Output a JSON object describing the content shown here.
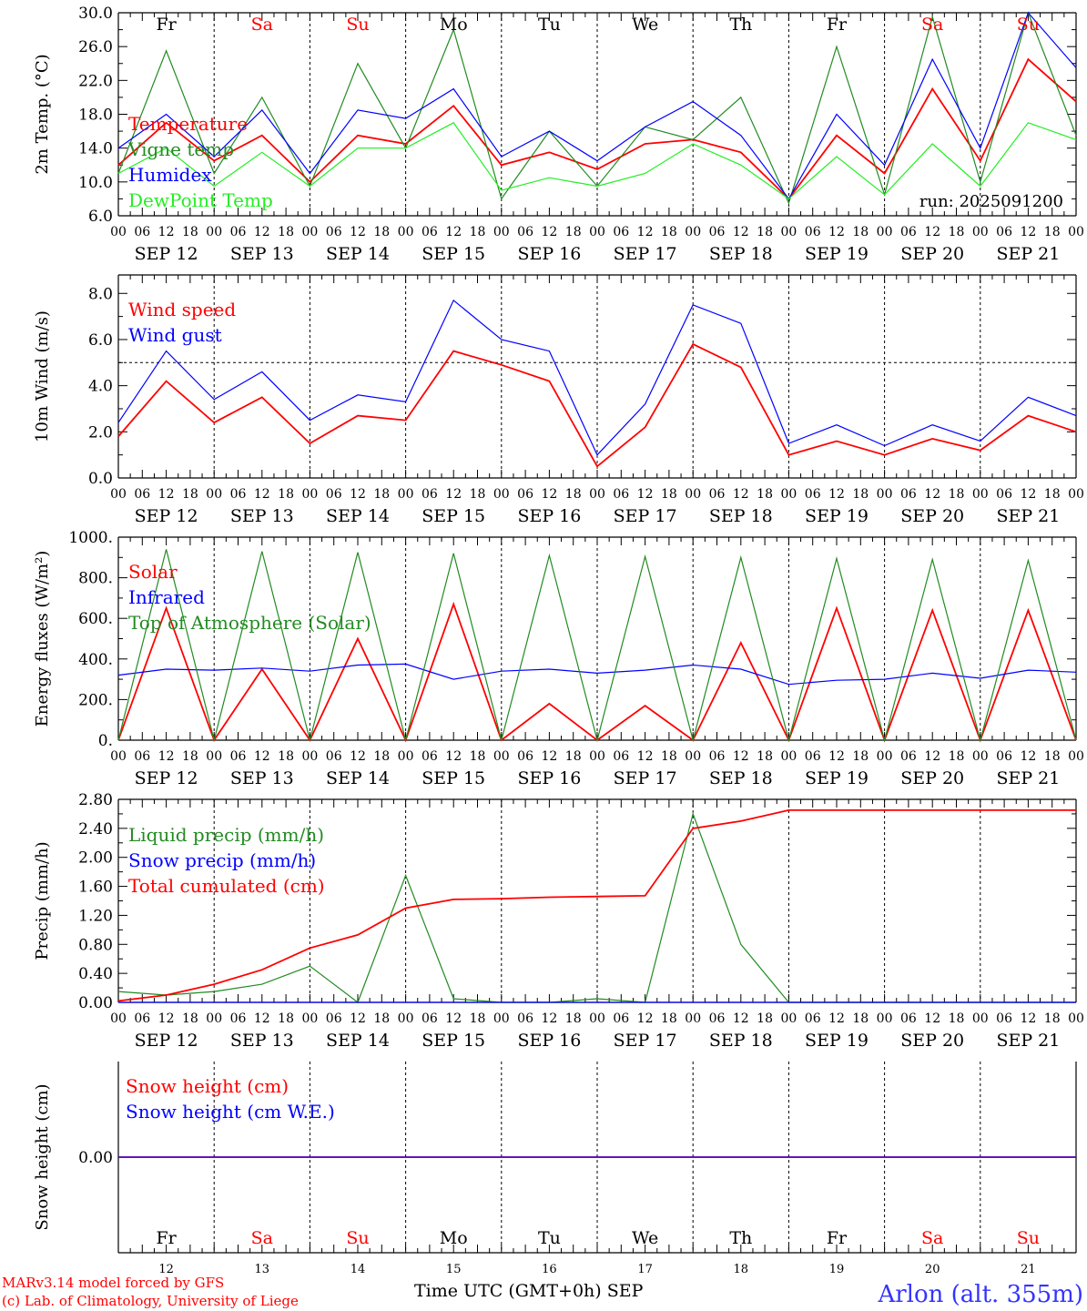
{
  "x_axis": {
    "hour_labels": [
      "00",
      "06",
      "12",
      "18"
    ],
    "date_labels": [
      "SEP 12",
      "SEP 13",
      "SEP 14",
      "SEP 15",
      "SEP 16",
      "SEP 17",
      "SEP 18",
      "SEP 19",
      "SEP 20",
      "SEP 21"
    ],
    "days": [
      {
        "abbr": "Fr",
        "num": "12",
        "weekend": false
      },
      {
        "abbr": "Sa",
        "num": "13",
        "weekend": true
      },
      {
        "abbr": "Su",
        "num": "14",
        "weekend": true
      },
      {
        "abbr": "Mo",
        "num": "15",
        "weekend": false
      },
      {
        "abbr": "Tu",
        "num": "16",
        "weekend": false
      },
      {
        "abbr": "We",
        "num": "17",
        "weekend": false
      },
      {
        "abbr": "Th",
        "num": "18",
        "weekend": false
      },
      {
        "abbr": "Fr",
        "num": "19",
        "weekend": false
      },
      {
        "abbr": "Sa",
        "num": "20",
        "weekend": true
      },
      {
        "abbr": "Su",
        "num": "21",
        "weekend": true
      }
    ],
    "bottom_label": "Time UTC (GMT+0h)",
    "month": "SEP"
  },
  "colors": {
    "red": "#ff0000",
    "green": "#228b22",
    "blue": "#0000ff",
    "lightgreen": "#22ee22",
    "weekday": "#000000",
    "weekend": "#ff0000"
  },
  "footer": {
    "model_line": "MARv3.14 model forced by GFS",
    "credit_line": "(c) Lab. of Climatology, University of Liege",
    "station": "Arlon (alt. 355m)"
  },
  "chart_data": [
    {
      "type": "line",
      "ylabel": "2m Temp. (°C)",
      "ylim": [
        6,
        30
      ],
      "yticks": [
        "6.0",
        "10.0",
        "14.0",
        "18.0",
        "22.0",
        "26.0",
        "30.0"
      ],
      "annotation": "run: 2025091200",
      "x": [
        0,
        12,
        24,
        36,
        48,
        60,
        72,
        84,
        96,
        108,
        120,
        132,
        144,
        156,
        168,
        180,
        192,
        204,
        216,
        228,
        240
      ],
      "series": [
        {
          "name": "Temperature",
          "color": "red",
          "values": [
            12,
            17,
            12.5,
            15.5,
            10,
            15.5,
            14.5,
            19,
            12,
            13.5,
            11.5,
            14.5,
            15,
            13.5,
            8,
            15.5,
            11,
            21,
            12.5,
            24.5,
            19.5
          ]
        },
        {
          "name": "Vigne temp",
          "color": "green",
          "values": [
            11,
            25.5,
            11,
            20,
            9.5,
            24,
            14,
            28,
            8,
            16,
            9.5,
            16.5,
            15,
            20,
            7.5,
            26,
            8.5,
            29.5,
            10,
            30,
            15.5
          ]
        },
        {
          "name": "Humidex",
          "color": "blue",
          "values": [
            14,
            18,
            13,
            18.5,
            11,
            18.5,
            17.5,
            21,
            13,
            16,
            12.5,
            16.5,
            19.5,
            15.5,
            8,
            18,
            12,
            24.5,
            14,
            30,
            23.5
          ]
        },
        {
          "name": "DewPoint Temp",
          "color": "lightgreen",
          "values": [
            11,
            14,
            9.5,
            13.5,
            9.5,
            14,
            14,
            17,
            9,
            10.5,
            9.5,
            11,
            14.5,
            12,
            8,
            13,
            8.5,
            14.5,
            9.5,
            17,
            15
          ]
        }
      ]
    },
    {
      "type": "line",
      "ylabel": "10m Wind (m/s)",
      "ylim": [
        0,
        8.8
      ],
      "yticks": [
        "0.0",
        "2.0",
        "4.0",
        "6.0",
        "8.0"
      ],
      "reference_line": 5,
      "x": [
        0,
        12,
        24,
        36,
        48,
        60,
        72,
        84,
        96,
        108,
        120,
        132,
        144,
        156,
        168,
        180,
        192,
        204,
        216,
        228,
        240
      ],
      "series": [
        {
          "name": "Wind speed",
          "color": "red",
          "values": [
            1.8,
            4.2,
            2.4,
            3.5,
            1.5,
            2.7,
            2.5,
            5.5,
            4.9,
            4.2,
            0.5,
            2.2,
            5.8,
            4.8,
            1,
            1.6,
            1,
            1.7,
            1.2,
            2.7,
            2
          ]
        },
        {
          "name": "Wind gust",
          "color": "blue",
          "values": [
            2.4,
            5.5,
            3.4,
            4.6,
            2.5,
            3.6,
            3.3,
            7.7,
            6,
            5.5,
            1,
            3.2,
            7.5,
            6.7,
            1.5,
            2.3,
            1.4,
            2.3,
            1.6,
            3.5,
            2.7
          ]
        }
      ]
    },
    {
      "type": "line",
      "ylabel": "Energy fluxes (W/m²)",
      "ylim": [
        0,
        1000
      ],
      "yticks": [
        "0.",
        "200.",
        "400.",
        "600.",
        "800.",
        "1000."
      ],
      "x": [
        0,
        12,
        24,
        36,
        48,
        60,
        72,
        84,
        96,
        108,
        120,
        132,
        144,
        156,
        168,
        180,
        192,
        204,
        216,
        228,
        240
      ],
      "series": [
        {
          "name": "Solar",
          "color": "red",
          "values": [
            0,
            650,
            0,
            350,
            0,
            500,
            0,
            670,
            0,
            180,
            0,
            170,
            0,
            480,
            0,
            650,
            0,
            640,
            0,
            640,
            0
          ]
        },
        {
          "name": "Infrared",
          "color": "blue",
          "values": [
            320,
            350,
            345,
            355,
            340,
            370,
            375,
            300,
            340,
            350,
            330,
            345,
            370,
            350,
            275,
            295,
            300,
            330,
            305,
            345,
            335
          ]
        },
        {
          "name": "Top of Atmosphere (Solar)",
          "color": "green",
          "values": [
            0,
            940,
            0,
            930,
            0,
            925,
            0,
            920,
            0,
            910,
            0,
            905,
            0,
            900,
            0,
            895,
            0,
            890,
            0,
            885,
            0
          ]
        }
      ]
    },
    {
      "type": "line",
      "ylabel": "Precip (mm/h)",
      "ylim": [
        0,
        2.8
      ],
      "yticks": [
        "0.00",
        "0.40",
        "0.80",
        "1.20",
        "1.60",
        "2.00",
        "2.40",
        "2.80"
      ],
      "x": [
        0,
        12,
        24,
        36,
        48,
        60,
        72,
        84,
        96,
        108,
        120,
        132,
        144,
        156,
        168,
        180,
        192,
        204,
        216,
        228,
        240
      ],
      "series": [
        {
          "name": "Liquid precip (mm/h)",
          "color": "green",
          "values": [
            0.15,
            0.1,
            0.15,
            0.25,
            0.5,
            0,
            1.75,
            0.05,
            0,
            0,
            0.05,
            0,
            2.6,
            0.8,
            0,
            0,
            0,
            0,
            0,
            0,
            0
          ]
        },
        {
          "name": "Snow precip (mm/h)",
          "color": "blue",
          "values": [
            0,
            0,
            0,
            0,
            0,
            0,
            0,
            0,
            0,
            0,
            0,
            0,
            0,
            0,
            0,
            0,
            0,
            0,
            0,
            0,
            0
          ]
        },
        {
          "name": "Total cumulated (cm)",
          "color": "red",
          "values": [
            0.02,
            0.1,
            0.25,
            0.45,
            0.75,
            0.93,
            1.3,
            1.42,
            1.43,
            1.45,
            1.46,
            1.47,
            2.4,
            2.5,
            2.65,
            2.65,
            2.65,
            2.65,
            2.65,
            2.65,
            2.65
          ]
        }
      ]
    },
    {
      "type": "line",
      "ylabel": "Snow height (cm)",
      "yticks": [
        "0.00"
      ],
      "x": [
        0,
        240
      ],
      "series": [
        {
          "name": "Snow height (cm)",
          "color": "red",
          "values": [
            0,
            0
          ]
        },
        {
          "name": "Snow height (cm W.E.)",
          "color": "blue",
          "values": [
            0,
            0
          ]
        }
      ]
    }
  ]
}
